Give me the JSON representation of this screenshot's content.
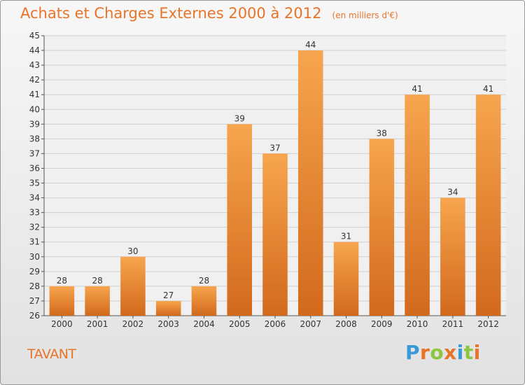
{
  "title": "Achats et Charges Externes 2000 à 2012",
  "unit_note": "(en milliers d'€)",
  "commune": "TAVANT",
  "brand": {
    "letters": [
      "P",
      "r",
      "o",
      "x",
      "i",
      "t",
      "i"
    ],
    "colors": [
      "#3a9ad9",
      "#e8742a",
      "#8cc63f",
      "#e8742a",
      "#3a9ad9",
      "#8cc63f",
      "#e8742a"
    ]
  },
  "colors": {
    "bar_light": "#f7a54e",
    "bar_dark": "#d2691c",
    "title": "#e8742a",
    "grid": "#cfcfcf"
  },
  "chart_data": {
    "type": "bar",
    "categories": [
      "2000",
      "2001",
      "2002",
      "2003",
      "2004",
      "2005",
      "2006",
      "2007",
      "2008",
      "2009",
      "2010",
      "2011",
      "2012"
    ],
    "values": [
      28,
      28,
      30,
      27,
      28,
      39,
      37,
      44,
      31,
      38,
      41,
      34,
      41
    ],
    "ylim": [
      26,
      45
    ],
    "yticks": [
      26,
      27,
      28,
      29,
      30,
      31,
      32,
      33,
      34,
      35,
      36,
      37,
      38,
      39,
      40,
      41,
      42,
      43,
      44,
      45
    ],
    "grid": true,
    "title": "Achats et Charges Externes 2000 à 2012",
    "xlabel": "",
    "ylabel": ""
  }
}
